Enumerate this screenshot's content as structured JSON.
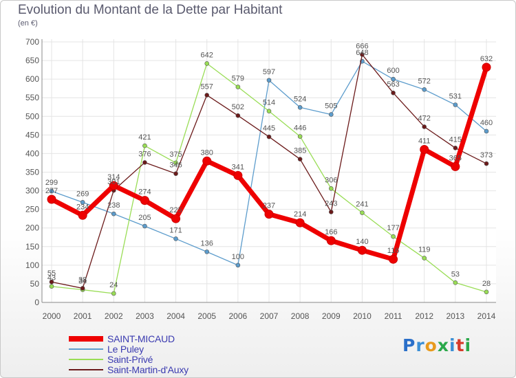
{
  "chart_data": {
    "type": "line",
    "title": "Evolution du Montant de la Dette par Habitant",
    "subtitle": "(en €)",
    "categories": [
      "2000",
      "2001",
      "2002",
      "2003",
      "2004",
      "2005",
      "2006",
      "2007",
      "2008",
      "2009",
      "2010",
      "2011",
      "2012",
      "2013",
      "2014"
    ],
    "ylim": [
      0,
      700
    ],
    "yticks": [
      0,
      50,
      100,
      150,
      200,
      250,
      300,
      350,
      400,
      450,
      500,
      550,
      600,
      650,
      700
    ],
    "grid": true,
    "legend_position": "bottom-left",
    "series": [
      {
        "name": "SAINT-MICAUD",
        "color": "#ee0000",
        "width": 7,
        "marker": 6,
        "values": [
          277,
          234,
          314,
          274,
          225,
          380,
          341,
          237,
          214,
          166,
          140,
          116,
          411,
          365,
          632
        ]
      },
      {
        "name": "Le Puley",
        "color": "#5c9ccc",
        "width": 1.3,
        "marker": 3,
        "values": [
          299,
          269,
          238,
          205,
          171,
          136,
          100,
          597,
          524,
          505,
          648,
          600,
          572,
          531,
          460
        ]
      },
      {
        "name": "Saint-Privé",
        "color": "#99dd55",
        "width": 1.3,
        "marker": 3,
        "values": [
          43,
          34,
          24,
          421,
          375,
          642,
          579,
          514,
          446,
          306,
          241,
          177,
          119,
          53,
          28
        ]
      },
      {
        "name": "Saint-Martin-d'Auxy",
        "color": "#6b1a1a",
        "width": 1.3,
        "marker": 3,
        "values": [
          55,
          38,
          301,
          376,
          346,
          557,
          502,
          445,
          385,
          243,
          666,
          563,
          472,
          415,
          373
        ]
      }
    ]
  },
  "brand": {
    "letters": [
      "P",
      "r",
      "o",
      "x",
      "i",
      "t",
      "i"
    ],
    "colors": [
      "#2a6fc9",
      "#3b8fd6",
      "#e89a1d",
      "#2aa84a",
      "#3b8fd6",
      "#d63a2a",
      "#2aa84a"
    ]
  }
}
